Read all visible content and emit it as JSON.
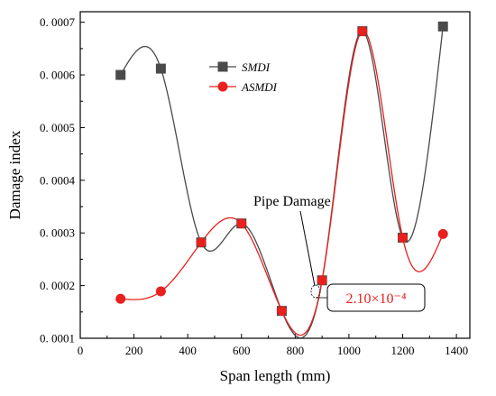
{
  "colors": {
    "smdi": "#4a4a4a",
    "asmdi": "#e8201e",
    "axis": "#000000"
  },
  "chart_data": {
    "type": "line",
    "xlabel": "Span length (mm)",
    "ylabel": "Damage index",
    "xlim": [
      0,
      1450
    ],
    "ylim": [
      0.0001,
      0.00072
    ],
    "xticks": [
      0,
      200,
      400,
      600,
      800,
      1000,
      1200,
      1400
    ],
    "xtick_labels": [
      "0",
      "200",
      "400",
      "600",
      "800",
      "1000",
      "1200",
      "1400"
    ],
    "yticks": [
      0.0001,
      0.0002,
      0.0003,
      0.0004,
      0.0005,
      0.0006,
      0.0007
    ],
    "ytick_labels": [
      "0. 0001",
      "0. 0002",
      "0. 0003",
      "0. 0004",
      "0. 0005",
      "0. 0006",
      "0. 0007"
    ],
    "grid": false,
    "legend_position": "top-center",
    "series": [
      {
        "name": "SMDI",
        "marker": "square",
        "x": [
          150,
          300,
          450,
          600,
          750,
          900,
          1050,
          1200,
          1350
        ],
        "y": [
          0.0006,
          0.000612,
          0.000282,
          0.000318,
          0.000152,
          0.00021,
          0.000683,
          0.000291,
          0.000692
        ]
      },
      {
        "name": "ASMDI",
        "marker": "circle",
        "x": [
          150,
          300,
          450,
          600,
          750,
          900,
          1050,
          1200,
          1350
        ],
        "y": [
          0.000175,
          0.000189,
          0.000282,
          0.000318,
          0.000152,
          0.00021,
          0.000683,
          0.000291,
          0.000298
        ]
      }
    ],
    "annotations": {
      "pipe_damage": {
        "text": "Pipe Damage",
        "x": 900,
        "y": 0.00021
      },
      "callout": {
        "text": "2.10×10⁻⁴"
      }
    }
  }
}
